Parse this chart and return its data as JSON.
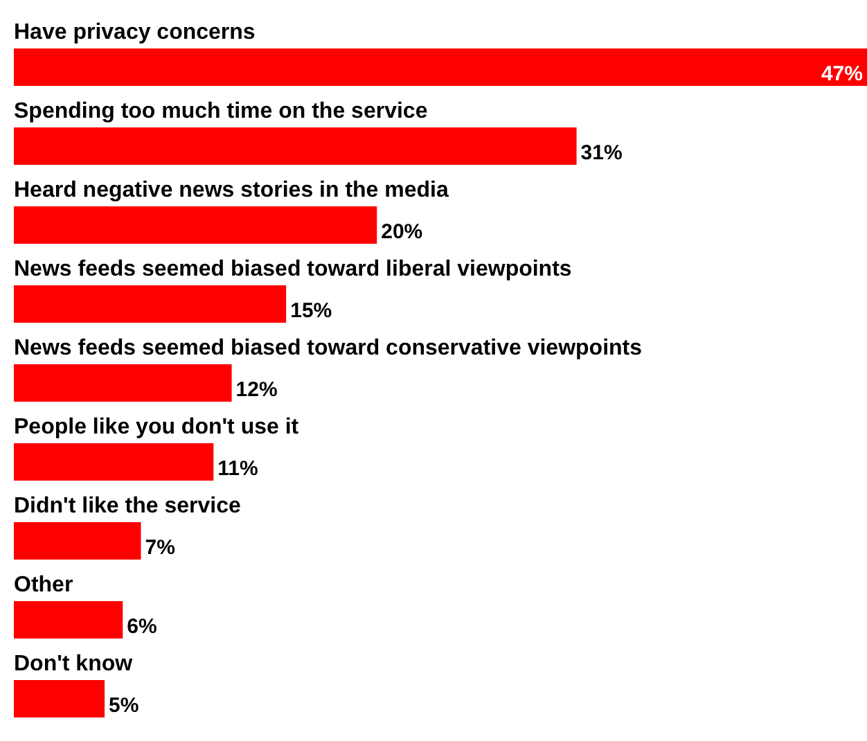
{
  "chart_data": {
    "type": "bar",
    "orientation": "horizontal",
    "categories": [
      "Have privacy concerns",
      "Spending too much time on the service",
      "Heard negative news stories in the media",
      "News feeds seemed biased toward liberal viewpoints",
      "News feeds seemed biased toward conservative viewpoints",
      "People like you don't use it",
      "Didn't like the service",
      "Other",
      "Don't know"
    ],
    "values": [
      47,
      31,
      20,
      15,
      12,
      11,
      7,
      6,
      5
    ],
    "value_labels": [
      "47%",
      "31%",
      "20%",
      "15%",
      "12%",
      "11%",
      "7%",
      "6%",
      "5%"
    ],
    "color": "#ff0000"
  }
}
